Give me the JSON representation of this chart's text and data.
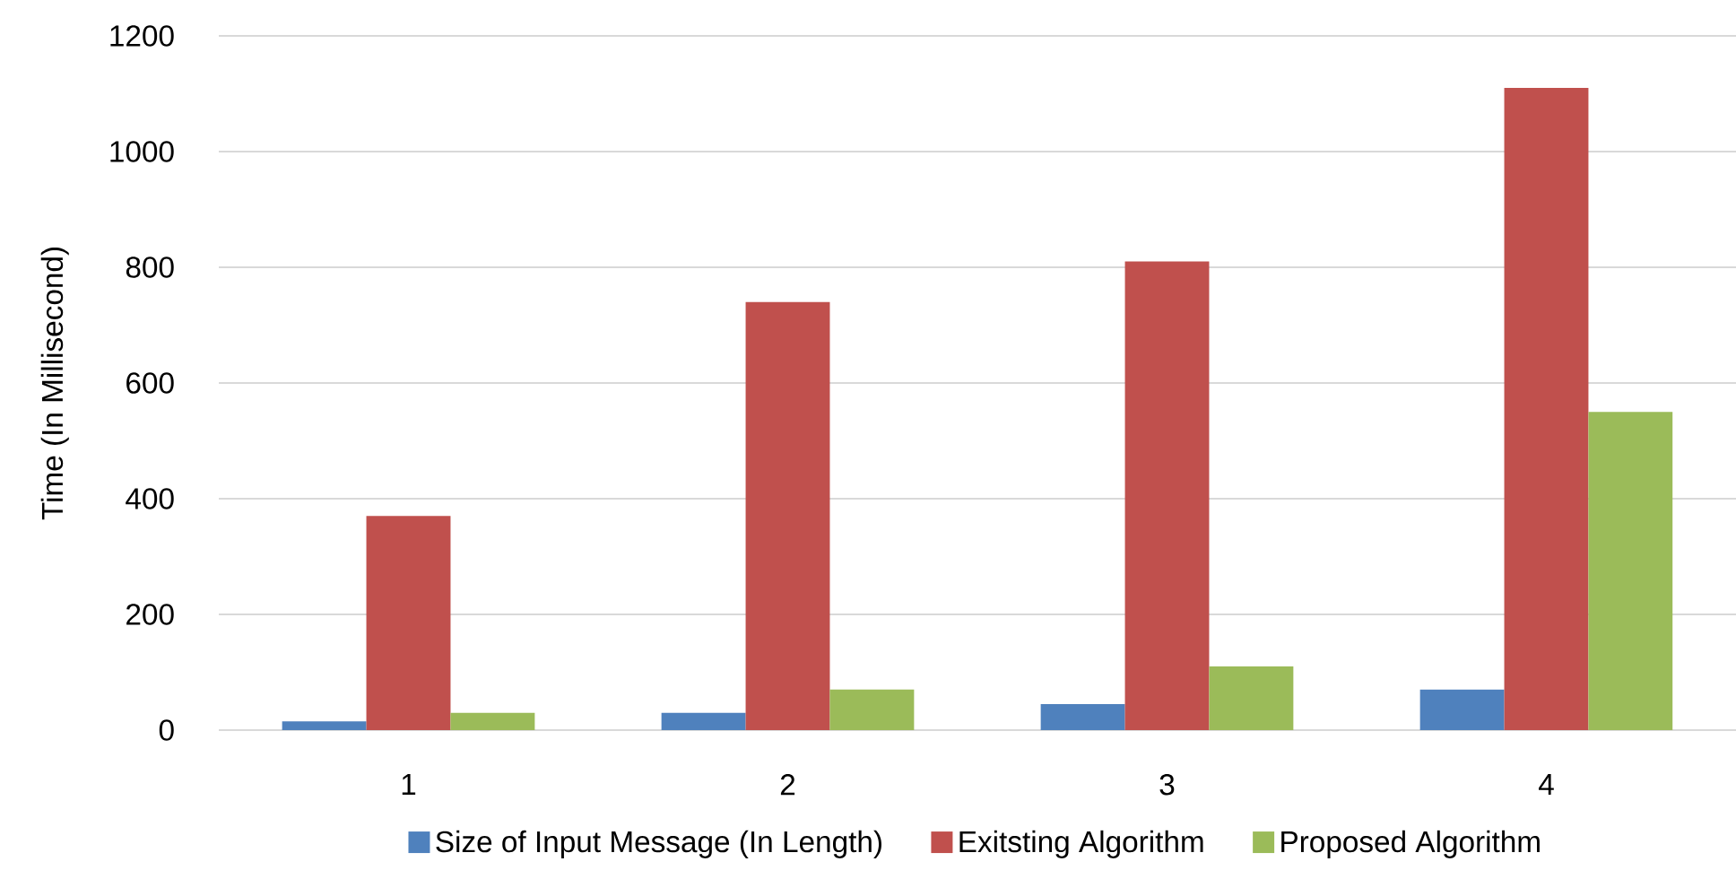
{
  "chart_data": {
    "type": "bar",
    "ylabel": "Time (In Millisecond)",
    "categories": [
      "1",
      "2",
      "3",
      "4"
    ],
    "series": [
      {
        "name": "Size of Input Message (In Length)",
        "color": "#4f81bd",
        "values": [
          15,
          30,
          45,
          70
        ]
      },
      {
        "name": "Exitsting Algorithm",
        "color": "#c0504d",
        "values": [
          370,
          740,
          810,
          1110
        ]
      },
      {
        "name": "Proposed Algorithm",
        "color": "#9bbb59",
        "values": [
          30,
          70,
          110,
          550
        ]
      }
    ],
    "ylim": [
      0,
      1200
    ],
    "yticks": [
      0,
      200,
      400,
      600,
      800,
      1000,
      1200
    ],
    "grid": "y",
    "legend": "bottom"
  }
}
